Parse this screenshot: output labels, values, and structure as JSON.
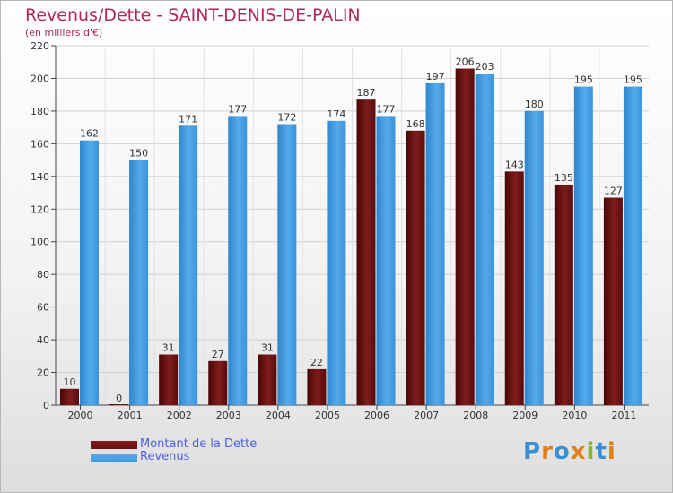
{
  "title": "Revenus/Dette - SAINT-DENIS-DE-PALIN",
  "subtitle": "(en milliers d'€)",
  "colors": {
    "debt": "#6b0f0f",
    "revenue": "#3e9be0",
    "title": "#b0285c",
    "legend_text": "#4d5fe6"
  },
  "chart_data": {
    "type": "bar",
    "title": "Revenus/Dette - SAINT-DENIS-DE-PALIN",
    "ylabel": "(en milliers d'€)",
    "xlabel": "",
    "categories": [
      "2000",
      "2001",
      "2002",
      "2003",
      "2004",
      "2005",
      "2006",
      "2007",
      "2008",
      "2009",
      "2010",
      "2011"
    ],
    "series": [
      {
        "name": "Montant de la Dette",
        "values": [
          10,
          0,
          31,
          27,
          31,
          22,
          187,
          168,
          206,
          143,
          135,
          127
        ]
      },
      {
        "name": "Revenus",
        "values": [
          162,
          150,
          171,
          177,
          172,
          174,
          177,
          197,
          203,
          180,
          195,
          195
        ]
      }
    ],
    "yticks": [
      0,
      20,
      40,
      60,
      80,
      100,
      120,
      140,
      160,
      180,
      200,
      220
    ],
    "ylim": [
      0,
      220
    ],
    "grid": true,
    "legend_position": "bottom-left"
  },
  "legend": {
    "debt_label": "Montant de la Dette",
    "revenue_label": "Revenus"
  },
  "logo": {
    "text": "Proxiti"
  }
}
